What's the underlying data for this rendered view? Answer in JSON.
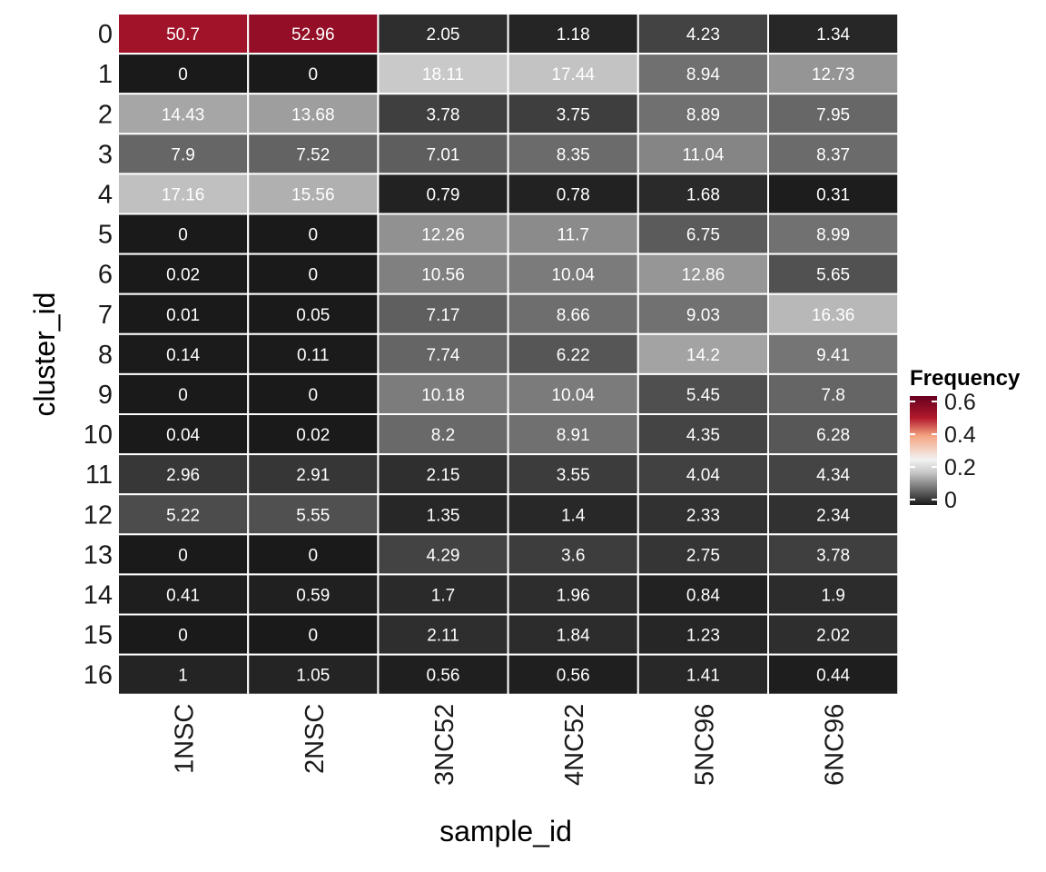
{
  "chart_data": {
    "type": "heatmap",
    "xlabel": "sample_id",
    "ylabel": "cluster_id",
    "x_categories": [
      "1NSC",
      "2NSC",
      "3NC52",
      "4NC52",
      "5NC96",
      "6NC96"
    ],
    "y_categories": [
      "0",
      "1",
      "2",
      "3",
      "4",
      "5",
      "6",
      "7",
      "8",
      "9",
      "10",
      "11",
      "12",
      "13",
      "14",
      "15",
      "16"
    ],
    "values": [
      [
        "50.7",
        "52.96",
        "2.05",
        "1.18",
        "4.23",
        "1.34"
      ],
      [
        "0",
        "0",
        "18.11",
        "17.44",
        "8.94",
        "12.73"
      ],
      [
        "14.43",
        "13.68",
        "3.78",
        "3.75",
        "8.89",
        "7.95"
      ],
      [
        "7.9",
        "7.52",
        "7.01",
        "8.35",
        "11.04",
        "8.37"
      ],
      [
        "17.16",
        "15.56",
        "0.79",
        "0.78",
        "1.68",
        "0.31"
      ],
      [
        "0",
        "0",
        "12.26",
        "11.7",
        "6.75",
        "8.99"
      ],
      [
        "0.02",
        "0",
        "10.56",
        "10.04",
        "12.86",
        "5.65"
      ],
      [
        "0.01",
        "0.05",
        "7.17",
        "8.66",
        "9.03",
        "16.36"
      ],
      [
        "0.14",
        "0.11",
        "7.74",
        "6.22",
        "14.2",
        "9.41"
      ],
      [
        "0",
        "0",
        "10.18",
        "10.04",
        "5.45",
        "7.8"
      ],
      [
        "0.04",
        "0.02",
        "8.2",
        "8.91",
        "4.35",
        "6.28"
      ],
      [
        "2.96",
        "2.91",
        "2.15",
        "3.55",
        "4.04",
        "4.34"
      ],
      [
        "5.22",
        "5.55",
        "1.35",
        "1.4",
        "2.33",
        "2.34"
      ],
      [
        "0",
        "0",
        "4.29",
        "3.6",
        "2.75",
        "3.78"
      ],
      [
        "0.41",
        "0.59",
        "1.7",
        "1.96",
        "0.84",
        "1.9"
      ],
      [
        "0",
        "0",
        "2.11",
        "1.84",
        "1.23",
        "2.02"
      ],
      [
        "1",
        "1.05",
        "0.56",
        "0.56",
        "1.41",
        "0.44"
      ]
    ],
    "legend": {
      "title": "Frequency",
      "ticks": [
        "0",
        "0.2",
        "0.4",
        "0.6"
      ],
      "range": [
        0,
        0.6
      ],
      "placement": "right"
    },
    "color_stops": [
      {
        "value": 0.0,
        "color": "#1a1a1a"
      },
      {
        "value": 0.18,
        "color": "#c8c8c8"
      },
      {
        "value": 0.25,
        "color": "#f2f2f2"
      },
      {
        "value": 0.38,
        "color": "#f4a582"
      },
      {
        "value": 0.48,
        "color": "#b2182b"
      },
      {
        "value": 0.6,
        "color": "#67001f"
      }
    ]
  }
}
